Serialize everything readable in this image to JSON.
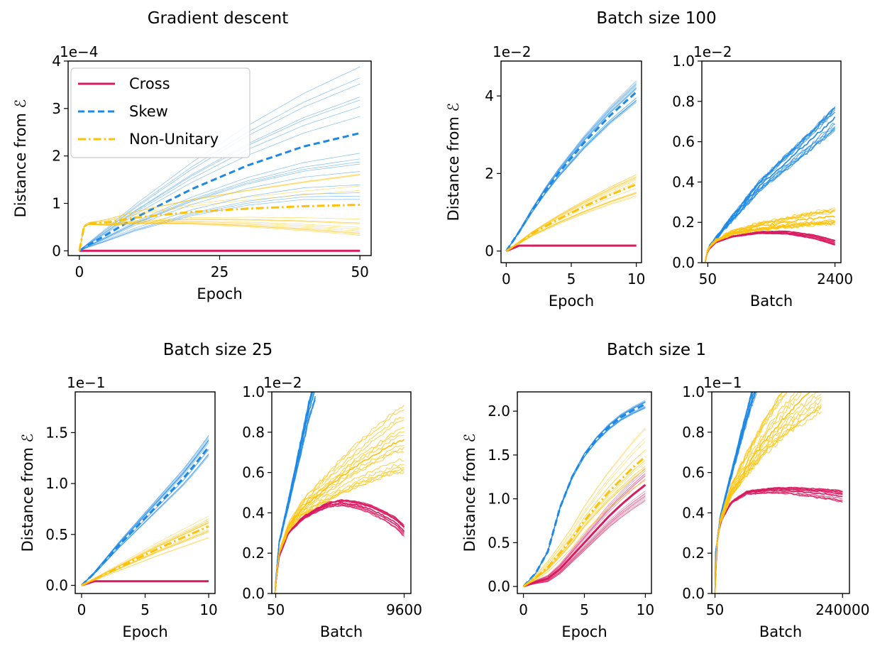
{
  "colors": {
    "Cross": "#d81b60",
    "Skew": "#1e88e5",
    "Non-Unitary": "#ffc107"
  },
  "panel_titles": [
    "Gradient descent",
    "Batch size 100",
    "Batch size 25",
    "Batch size 1"
  ],
  "chart_data": [
    {
      "type": "line",
      "title": "Gradient descent",
      "xlabel": "Epoch",
      "ylabel": "Distance from ℰ",
      "offset_label": "1e−4",
      "xlim": [
        -2,
        52
      ],
      "ylim": [
        -0.1,
        4
      ],
      "xticks": [
        0,
        25,
        50
      ],
      "xtick_labels": [
        "0",
        "25",
        "50"
      ],
      "yticks": [
        0,
        1,
        2,
        3,
        4
      ],
      "ytick_labels": [
        "0",
        "1",
        "2",
        "3",
        "4"
      ],
      "legend": {
        "position": "top-left",
        "entries": [
          "Cross",
          "Skew",
          "Non-Unitary"
        ]
      },
      "series": [
        {
          "name": "Cross",
          "style": "solid",
          "spread": [
            0,
            0
          ],
          "x": [
            0,
            10,
            20,
            30,
            40,
            50
          ],
          "y": [
            0,
            0,
            0,
            0,
            0,
            0
          ]
        },
        {
          "name": "Skew",
          "style": "dashed",
          "spread": [
            0.35,
            1.4
          ],
          "x": [
            0,
            1,
            5,
            10,
            20,
            30,
            40,
            50
          ],
          "y": [
            0,
            0.08,
            0.35,
            0.7,
            1.3,
            1.8,
            2.2,
            2.48
          ]
        },
        {
          "name": "Non-Unitary",
          "style": "dashdot",
          "spread": [
            0.3,
            0.7
          ],
          "x": [
            0,
            0.5,
            1,
            5,
            10,
            20,
            30,
            40,
            50
          ],
          "y": [
            0,
            0.4,
            0.57,
            0.6,
            0.7,
            0.82,
            0.89,
            0.94,
            0.97
          ]
        }
      ]
    },
    {
      "type": "line",
      "xlabel": "Epoch",
      "ylabel": "Distance from ℰ",
      "offset_label": "1e−2",
      "xlim": [
        -0.4,
        10.4
      ],
      "ylim": [
        -0.3,
        4.9
      ],
      "xticks": [
        0,
        5,
        10
      ],
      "xtick_labels": [
        "0",
        "5",
        "10"
      ],
      "yticks": [
        0,
        2,
        4
      ],
      "ytick_labels": [
        "0",
        "2",
        "4"
      ],
      "series": [
        {
          "name": "Cross",
          "style": "solid",
          "spread": [
            0,
            0
          ],
          "x": [
            0,
            1,
            2,
            5,
            10
          ],
          "y": [
            0,
            0.14,
            0.14,
            0.14,
            0.14
          ]
        },
        {
          "name": "Skew",
          "style": "dashed",
          "spread": [
            0.05,
            0.3
          ],
          "x": [
            0,
            1,
            2,
            3,
            4,
            5,
            6,
            7,
            8,
            9,
            10
          ],
          "y": [
            0,
            0.5,
            1.05,
            1.55,
            2.0,
            2.4,
            2.8,
            3.15,
            3.5,
            3.8,
            4.1
          ]
        },
        {
          "name": "Non-Unitary",
          "style": "dashdot",
          "spread": [
            0.04,
            0.35
          ],
          "x": [
            0,
            1,
            2,
            4,
            6,
            8,
            10
          ],
          "y": [
            0,
            0.22,
            0.45,
            0.82,
            1.15,
            1.45,
            1.72
          ]
        }
      ]
    },
    {
      "type": "line",
      "xlabel": "Batch",
      "offset_label": "1e−2",
      "xlim": [
        -60,
        2510
      ],
      "ylim": [
        0,
        1.0
      ],
      "xticks": [
        50,
        2400
      ],
      "xtick_labels": [
        "50",
        "2400"
      ],
      "yticks": [
        0,
        0.2,
        0.4,
        0.6,
        0.8,
        1.0
      ],
      "ytick_labels": [
        "0.0",
        "0.2",
        "0.4",
        "0.6",
        "0.8",
        "1.0"
      ],
      "series": [
        {
          "name": "Cross",
          "style": "noisy",
          "spread": [
            0.005,
            0.012
          ],
          "x": [
            0,
            50,
            200,
            500,
            1000,
            1500,
            2000,
            2400
          ],
          "y": [
            0,
            0.06,
            0.1,
            0.13,
            0.15,
            0.15,
            0.13,
            0.1
          ]
        },
        {
          "name": "Skew",
          "style": "noisy",
          "spread": [
            0.02,
            0.06
          ],
          "x": [
            0,
            50,
            200,
            500,
            1000,
            1500,
            2000,
            2400
          ],
          "y": [
            0,
            0.07,
            0.12,
            0.22,
            0.38,
            0.5,
            0.62,
            0.72
          ]
        },
        {
          "name": "Non-Unitary",
          "style": "noisy",
          "spread": [
            0.02,
            0.04
          ],
          "x": [
            0,
            50,
            200,
            500,
            1000,
            1500,
            2000,
            2400
          ],
          "y": [
            0,
            0.07,
            0.11,
            0.15,
            0.18,
            0.2,
            0.22,
            0.23
          ]
        }
      ]
    },
    {
      "type": "line",
      "xlabel": "Epoch",
      "ylabel": "Distance from ℰ",
      "offset_label": "1e−1",
      "xlim": [
        -0.5,
        10.5
      ],
      "ylim": [
        -0.08,
        1.9
      ],
      "xticks": [
        0,
        5,
        10
      ],
      "xtick_labels": [
        "0",
        "5",
        "10"
      ],
      "yticks": [
        0,
        0.5,
        1.0,
        1.5
      ],
      "ytick_labels": [
        "0.0",
        "0.5",
        "1.0",
        "1.5"
      ],
      "series": [
        {
          "name": "Cross",
          "style": "solid",
          "spread": [
            0,
            0
          ],
          "x": [
            0,
            1,
            2,
            5,
            10
          ],
          "y": [
            0,
            0.04,
            0.04,
            0.04,
            0.04
          ]
        },
        {
          "name": "Skew",
          "style": "dashed",
          "spread": [
            0.02,
            0.14
          ],
          "x": [
            0,
            1,
            2,
            3,
            4,
            5,
            6,
            7,
            8,
            9,
            10
          ],
          "y": [
            0,
            0.12,
            0.26,
            0.4,
            0.53,
            0.66,
            0.79,
            0.92,
            1.05,
            1.2,
            1.36
          ]
        },
        {
          "name": "Non-Unitary",
          "style": "dashdot",
          "spread": [
            0.02,
            0.12
          ],
          "x": [
            0,
            1,
            2,
            4,
            6,
            8,
            10
          ],
          "y": [
            0,
            0.06,
            0.12,
            0.24,
            0.36,
            0.47,
            0.58
          ]
        }
      ]
    },
    {
      "type": "line",
      "xlabel": "Batch",
      "offset_label": "1e−2",
      "xlim": [
        -240,
        10100
      ],
      "ylim": [
        0,
        1.0
      ],
      "xticks": [
        50,
        9600
      ],
      "xtick_labels": [
        "50",
        "9600"
      ],
      "yticks": [
        0,
        0.2,
        0.4,
        0.6,
        0.8,
        1.0
      ],
      "ytick_labels": [
        "0.0",
        "0.2",
        "0.4",
        "0.6",
        "0.8",
        "1.0"
      ],
      "series": [
        {
          "name": "Cross",
          "style": "noisy",
          "spread": [
            0.01,
            0.03
          ],
          "x": [
            0,
            50,
            300,
            1000,
            2000,
            3000,
            4000,
            5000,
            6000,
            7000,
            8000,
            9000,
            9600
          ],
          "y": [
            0,
            0.05,
            0.18,
            0.3,
            0.37,
            0.41,
            0.44,
            0.45,
            0.44,
            0.42,
            0.39,
            0.35,
            0.31
          ]
        },
        {
          "name": "Skew",
          "style": "noisy",
          "spread": [
            0.02,
            0.06
          ],
          "x": [
            0,
            50,
            300,
            1000,
            1500,
            2000,
            2500,
            3000
          ],
          "y": [
            0,
            0.06,
            0.25,
            0.45,
            0.6,
            0.75,
            0.9,
            1.02
          ]
        },
        {
          "name": "Non-Unitary",
          "style": "noisy",
          "spread": [
            0.02,
            0.18
          ],
          "x": [
            0,
            50,
            300,
            1000,
            2000,
            3000,
            4000,
            5000,
            6000,
            7000,
            8000,
            9000,
            9600
          ],
          "y": [
            0,
            0.06,
            0.2,
            0.33,
            0.42,
            0.48,
            0.53,
            0.58,
            0.63,
            0.67,
            0.71,
            0.75,
            0.76
          ]
        }
      ]
    },
    {
      "type": "line",
      "xlabel": "Epoch",
      "ylabel": "Distance from ℰ",
      "offset_label": "",
      "xlim": [
        -0.5,
        10.5
      ],
      "ylim": [
        -0.08,
        2.22
      ],
      "xticks": [
        0,
        5,
        10
      ],
      "xtick_labels": [
        "0",
        "5",
        "10"
      ],
      "yticks": [
        0,
        0.5,
        1.0,
        1.5,
        2.0
      ],
      "ytick_labels": [
        "0.0",
        "0.5",
        "1.0",
        "1.5",
        "2.0"
      ],
      "series": [
        {
          "name": "Cross",
          "style": "solid",
          "spread": [
            0.04,
            0.2
          ],
          "x": [
            0,
            1,
            2,
            3,
            4,
            5,
            6,
            7,
            8,
            9,
            10
          ],
          "y": [
            0,
            0.05,
            0.09,
            0.2,
            0.35,
            0.5,
            0.65,
            0.8,
            0.93,
            1.05,
            1.16
          ]
        },
        {
          "name": "Skew",
          "style": "dashed",
          "spread": [
            0.02,
            0.05
          ],
          "x": [
            0,
            1,
            2,
            3,
            4,
            5,
            6,
            7,
            8,
            9,
            10
          ],
          "y": [
            0,
            0.15,
            0.4,
            0.9,
            1.25,
            1.5,
            1.68,
            1.82,
            1.93,
            2.01,
            2.08
          ]
        },
        {
          "name": "Non-Unitary",
          "style": "dashdot",
          "spread": [
            0.03,
            0.35
          ],
          "x": [
            0,
            1,
            2,
            3,
            4,
            5,
            6,
            7,
            8,
            9,
            10
          ],
          "y": [
            0,
            0.1,
            0.22,
            0.38,
            0.55,
            0.75,
            0.92,
            1.08,
            1.22,
            1.36,
            1.48
          ]
        }
      ]
    },
    {
      "type": "line",
      "xlabel": "Batch",
      "offset_label": "1e−1",
      "xlim": [
        -6000,
        253000
      ],
      "ylim": [
        0,
        1.0
      ],
      "xticks": [
        50,
        240000
      ],
      "xtick_labels": [
        "50",
        "240000"
      ],
      "yticks": [
        0,
        0.2,
        0.4,
        0.6,
        0.8,
        1.0
      ],
      "ytick_labels": [
        "0.0",
        "0.2",
        "0.4",
        "0.6",
        "0.8",
        "1.0"
      ],
      "series": [
        {
          "name": "Cross",
          "style": "noisy",
          "spread": [
            0.01,
            0.03
          ],
          "x": [
            0,
            1000,
            10000,
            30000,
            60000,
            100000,
            140000,
            180000,
            220000,
            240000
          ],
          "y": [
            0,
            0.2,
            0.35,
            0.45,
            0.5,
            0.51,
            0.51,
            0.5,
            0.49,
            0.48
          ]
        },
        {
          "name": "Skew",
          "style": "noisy",
          "spread": [
            0.02,
            0.06
          ],
          "x": [
            0,
            1000,
            10000,
            30000,
            50000,
            70000,
            80000
          ],
          "y": [
            0,
            0.2,
            0.38,
            0.58,
            0.78,
            0.97,
            1.05
          ]
        },
        {
          "name": "Non-Unitary",
          "style": "noisy",
          "spread": [
            0.03,
            0.25
          ],
          "x": [
            0,
            1000,
            10000,
            30000,
            60000,
            100000,
            140000,
            180000,
            200000
          ],
          "y": [
            0,
            0.2,
            0.36,
            0.5,
            0.63,
            0.78,
            0.9,
            1.0,
            1.05
          ]
        }
      ]
    }
  ]
}
